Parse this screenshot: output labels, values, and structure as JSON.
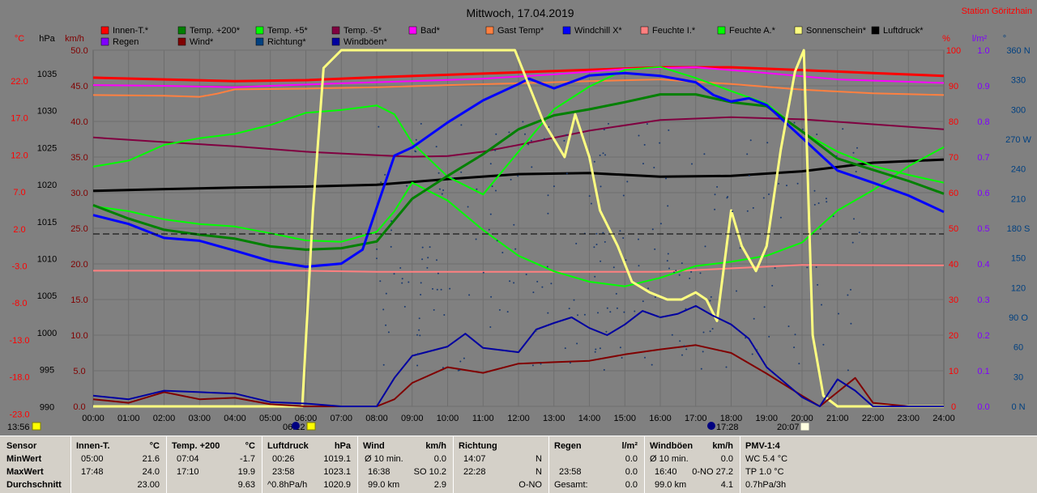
{
  "title": "Mittwoch, 17.04.2019",
  "station": "Station Göritzhain",
  "axis_units": {
    "celsius": "°C",
    "hpa": "hPa",
    "kmh": "km/h",
    "percent": "%",
    "lm2": "l/m²",
    "deg": "°"
  },
  "legend": [
    {
      "label": "Innen-T.*",
      "color": "#ff0000"
    },
    {
      "label": "Temp. +200*",
      "color": "#008000"
    },
    {
      "label": "Temp. +5*",
      "color": "#00ff00"
    },
    {
      "label": "Temp. -5*",
      "color": "#800040"
    },
    {
      "label": "Bad*",
      "color": "#ff00ff"
    },
    {
      "label": "Gast Temp*",
      "color": "#ff8040"
    },
    {
      "label": "Windchill X*",
      "color": "#0000ff"
    },
    {
      "label": "Feuchte I.*",
      "color": "#ff8080"
    },
    {
      "label": "Feuchte A.*",
      "color": "#00ff00"
    },
    {
      "label": "Sonnenschein*",
      "color": "#ffff80"
    },
    {
      "label": "Luftdruck*",
      "color": "#000000"
    },
    {
      "label": "Regen",
      "color": "#8000ff"
    },
    {
      "label": "Wind*",
      "color": "#800000"
    },
    {
      "label": "Richtung*",
      "color": "#004080"
    },
    {
      "label": "Windböen*",
      "color": "#0000a0"
    }
  ],
  "time_markers": {
    "sunrise": "13:56",
    "t2": "06:12",
    "t3": "17:28",
    "t4": "20:07"
  },
  "chart_data": {
    "type": "line",
    "x_ticks": [
      "00:00",
      "01:00",
      "02:00",
      "03:00",
      "04:00",
      "05:00",
      "06:00",
      "07:00",
      "08:00",
      "09:00",
      "10:00",
      "11:00",
      "12:00",
      "13:00",
      "14:00",
      "15:00",
      "16:00",
      "17:00",
      "18:00",
      "19:00",
      "20:00",
      "21:00",
      "22:00",
      "23:00",
      "24:00"
    ],
    "xlim": [
      0,
      24
    ],
    "ylim_kmh": [
      0,
      50
    ],
    "y_ticks": {
      "celsius": [
        "22.0",
        "17.0",
        "12.0",
        "7.0",
        "2.0",
        "-3.0",
        "-8.0",
        "-13.0",
        "-18.0",
        "-23.0"
      ],
      "hpa": [
        "1035",
        "1030",
        "1025",
        "1020",
        "1015",
        "1010",
        "1005",
        "1000",
        "995",
        "990"
      ],
      "kmh": [
        "50.0",
        "45.0",
        "40.0",
        "35.0",
        "30.0",
        "25.0",
        "20.0",
        "15.0",
        "10.0",
        "5.0",
        "0.0"
      ],
      "percent": [
        "100",
        "90",
        "80",
        "70",
        "60",
        "50",
        "40",
        "30",
        "20",
        "10",
        "0"
      ],
      "lm2": [
        "1.0",
        "0.9",
        "0.8",
        "0.7",
        "0.6",
        "0.5",
        "0.4",
        "0.3",
        "0.2",
        "0.1",
        "0.0"
      ],
      "deg": [
        "360 N",
        "330",
        "300",
        "270 W",
        "240",
        "210",
        "180 S",
        "150",
        "120",
        "90 O",
        "60",
        "30",
        "0 N"
      ]
    },
    "series": [
      {
        "name": "Innen-T.*",
        "color": "#ff0000",
        "width": 3,
        "x": [
          0,
          2,
          4,
          6,
          8,
          10,
          12,
          14,
          16,
          18,
          20,
          22,
          24
        ],
        "y": [
          92.3,
          91.8,
          91.3,
          91.6,
          92.4,
          93.1,
          93.8,
          94.5,
          95.2,
          95.2,
          94.4,
          93.6,
          92.8
        ]
      },
      {
        "name": "Bad*",
        "color": "#ff00ff",
        "width": 2,
        "x": [
          0,
          2,
          4,
          5,
          7,
          9,
          11,
          13,
          15,
          17,
          19,
          21,
          24
        ],
        "y": [
          90.2,
          90,
          89.6,
          90,
          90.7,
          91.3,
          92,
          93.2,
          94.7,
          95.2,
          93.6,
          91.8,
          90.8
        ]
      },
      {
        "name": "Gast Temp*",
        "color": "#ff8040",
        "width": 2,
        "x": [
          0,
          2,
          3,
          3.5,
          4,
          6,
          8,
          10,
          12,
          14,
          16,
          18,
          20,
          22,
          24
        ],
        "y": [
          87.4,
          87.2,
          86.9,
          87.8,
          89,
          89.2,
          89.6,
          90.2,
          90.7,
          91.3,
          91.8,
          90.5,
          88.9,
          87.9,
          87.4
        ]
      },
      {
        "name": "Temp. -5*",
        "color": "#800040",
        "width": 2,
        "x": [
          0,
          2,
          4,
          6,
          8,
          9,
          10,
          11,
          12,
          14,
          16,
          18,
          20,
          22,
          24
        ],
        "y": [
          75.5,
          74.2,
          73,
          71.5,
          70.5,
          70.1,
          70.3,
          71.5,
          73.4,
          77.4,
          80.4,
          81.2,
          80.6,
          79.2,
          77.8
        ]
      },
      {
        "name": "Luftdruck*",
        "color": "#000000",
        "width": 3,
        "x": [
          0,
          2,
          4,
          6,
          8,
          10,
          12,
          14,
          16,
          18,
          20,
          22,
          24
        ],
        "y": [
          60.5,
          61,
          61.4,
          61.7,
          62.2,
          63.8,
          65.2,
          65.5,
          64.5,
          64.7,
          66,
          68.4,
          69.3
        ]
      },
      {
        "name": "Feuchte I.*",
        "color": "#ff8080",
        "width": 2,
        "x": [
          0,
          6,
          8,
          12,
          16,
          20,
          24
        ],
        "y": [
          38.1,
          38.1,
          37.8,
          37.8,
          37.8,
          39.7,
          39.6
        ]
      },
      {
        "name": "Temp. +5*",
        "color": "#00ff00",
        "width": 2,
        "x": [
          0,
          1,
          2,
          3,
          4,
          5,
          6,
          7,
          8,
          8.5,
          9,
          10,
          11,
          12,
          13,
          14,
          15,
          16,
          17,
          18,
          19,
          20,
          21,
          22,
          23,
          24
        ],
        "y": [
          67.3,
          69,
          73.4,
          75.3,
          76.5,
          79,
          82.4,
          83.2,
          84.5,
          82,
          74,
          64.5,
          59.5,
          71.5,
          83.4,
          89.8,
          94.5,
          95.3,
          92.2,
          88.5,
          85,
          77,
          71.5,
          67.5,
          65,
          62.8
        ]
      },
      {
        "name": "Feuchte A.*",
        "color": "#00ff00",
        "width": 2,
        "x": [
          0,
          1,
          2,
          3,
          4,
          5,
          6,
          7,
          8,
          8.5,
          9,
          10,
          11,
          12,
          13,
          14,
          15,
          16,
          17,
          18,
          19,
          20,
          21,
          22,
          23,
          24
        ],
        "y": [
          56.2,
          54.8,
          52.5,
          51.2,
          50.5,
          48.6,
          46.6,
          46.2,
          49,
          54.8,
          62.8,
          57.8,
          49.5,
          42.3,
          37.9,
          35,
          33.7,
          36.1,
          39.4,
          40.6,
          42.3,
          46,
          55,
          60.7,
          67.4,
          72.8
        ]
      },
      {
        "name": "Temp. +200*",
        "color": "#008000",
        "width": 3,
        "x": [
          0,
          1,
          2,
          3,
          4,
          5,
          6,
          7,
          8,
          9,
          10,
          11,
          12,
          13,
          14,
          15,
          16,
          17,
          18,
          19,
          20,
          21,
          22,
          23,
          24
        ],
        "y": [
          56.5,
          52.7,
          49.6,
          48.2,
          47.1,
          44.9,
          44,
          44.4,
          46.3,
          58.3,
          64.7,
          70.8,
          77.8,
          81.7,
          83.4,
          85.4,
          87.6,
          87.6,
          85.4,
          84.3,
          77.2,
          69.6,
          66.4,
          63.3,
          59.7
        ]
      },
      {
        "name": "Windchill X*",
        "color": "#0000ff",
        "width": 3,
        "x": [
          0,
          1,
          2,
          3,
          4,
          5,
          6,
          7,
          7.6,
          8,
          8.5,
          9,
          10,
          11,
          12,
          12.3,
          13,
          14,
          15,
          16,
          17,
          17.5,
          18,
          18.5,
          19,
          20,
          21,
          22,
          23,
          24
        ],
        "y": [
          53.7,
          51.2,
          47.3,
          46.5,
          43.7,
          40.8,
          39.2,
          40.1,
          44,
          55.8,
          70.4,
          72.7,
          79.7,
          85.9,
          90.5,
          92,
          89.3,
          92.9,
          93.6,
          92.8,
          91,
          87.4,
          85.6,
          86.5,
          84.6,
          75.4,
          66.2,
          62.8,
          59.2,
          54.6
        ]
      },
      {
        "name": "Sonnenschein*",
        "color": "#ffff80",
        "width": 3,
        "x": [
          0,
          5.9,
          6.2,
          6.5,
          7,
          9,
          11,
          11.9,
          12.3,
          12.7,
          13,
          13.3,
          13.6,
          14,
          14.3,
          14.8,
          15.2,
          15.7,
          16.2,
          16.6,
          17,
          17.3,
          17.6,
          18,
          18.3,
          18.7,
          19,
          19.4,
          19.8,
          20.05,
          20.3,
          20.6,
          21,
          22,
          24
        ],
        "y": [
          0,
          0,
          55,
          95,
          100,
          100,
          100,
          100,
          90,
          80,
          75,
          70,
          82,
          70,
          55,
          45,
          35,
          32,
          30,
          30,
          32,
          30,
          24,
          55,
          45,
          38,
          45,
          72,
          94,
          100,
          20,
          3,
          0,
          0,
          0
        ]
      },
      {
        "name": "Wind*",
        "color": "#800000",
        "width": 2,
        "x": [
          0,
          1,
          2,
          3,
          4,
          5,
          6,
          7,
          8,
          8.5,
          9,
          10,
          11,
          12,
          13,
          14,
          15,
          16,
          17,
          18,
          19,
          20,
          20.5,
          21,
          21.5,
          22,
          23,
          24
        ],
        "y": [
          1,
          0.5,
          2,
          1,
          1.2,
          0.3,
          0,
          0,
          0,
          1,
          3.3,
          5.5,
          4.7,
          6,
          6.2,
          6.4,
          7.3,
          8,
          8.6,
          7.5,
          4.6,
          1.5,
          0,
          2,
          4,
          0.5,
          0,
          0
        ]
      },
      {
        "name": "Windböen*",
        "color": "#0000a0",
        "width": 2,
        "x": [
          0,
          1,
          2,
          3,
          4,
          5,
          6,
          7,
          8,
          8.5,
          9,
          10,
          10.5,
          11,
          12,
          12.5,
          13,
          13.5,
          14,
          14.5,
          15,
          15.5,
          16,
          16.5,
          17,
          17.5,
          18,
          18.5,
          19,
          20,
          20.5,
          21,
          21.5,
          22,
          23,
          24
        ],
        "y": [
          1.5,
          1,
          2.2,
          2,
          1.8,
          0.6,
          0.4,
          0,
          0,
          4,
          7.1,
          8.4,
          10.2,
          8.2,
          7.6,
          10.8,
          11.7,
          12.5,
          11,
          10,
          11.5,
          13.4,
          12.5,
          13,
          14.1,
          12.7,
          11.5,
          9.5,
          5.5,
          1.3,
          0,
          3.8,
          2.2,
          0,
          0,
          0
        ]
      }
    ]
  },
  "stats_panel": {
    "sensor": {
      "header": "Sensor",
      "rows": [
        "MinWert",
        "MaxWert",
        "Durchschnitt"
      ]
    },
    "innen": {
      "title": "Innen-T.",
      "unit": "°C",
      "r1a": "05:00",
      "r1b": "21.6",
      "r2a": "17:48",
      "r2b": "24.0",
      "r3a": "",
      "r3b": "23.00"
    },
    "temp200": {
      "title": "Temp. +200",
      "unit": "°C",
      "r1a": "07:04",
      "r1b": "-1.7",
      "r2a": "17:10",
      "r2b": "19.9",
      "r3a": "",
      "r3b": "9.63"
    },
    "luftdruck": {
      "title": "Luftdruck",
      "unit": "hPa",
      "r1a": "00:26",
      "r1b": "1019.1",
      "r2a": "23:58",
      "r2b": "1023.1",
      "r3a": "^0.8hPa/h",
      "r3b": "1020.9"
    },
    "wind": {
      "title": "Wind",
      "unit": "km/h",
      "r1a": "Ø 10 min.",
      "r1b": "0.0",
      "r2a": "16:38",
      "r2b": "SO 10.2",
      "r3a": "99.0 km",
      "r3b": "2.9"
    },
    "richtung": {
      "title": "Richtung",
      "unit": "",
      "r1a": "14:07",
      "r1b": "N",
      "r2a": "22:28",
      "r2b": "N",
      "r3a": "",
      "r3b": "O-NO"
    },
    "regen": {
      "title": "Regen",
      "unit": "l/m²",
      "r1a": "",
      "r1b": "",
      "r2a": "23:58",
      "r2b": "0.0",
      "r3a": "Gesamt:",
      "r3b": "0.0",
      "r0b": "0.0"
    },
    "boeen": {
      "title": "Windböen",
      "unit": "km/h",
      "r1a": "Ø 10 min.",
      "r1b": "0.0",
      "r2a": "16:40",
      "r2b": "0-NO 27.2",
      "r3a": "99.0 km",
      "r3b": "4.1"
    },
    "pmv": {
      "title": "PMV-1:4",
      "r1": "WC 5.4 °C",
      "r2": "TP 1.0 °C",
      "r3": "0.7hPa/3h"
    }
  }
}
